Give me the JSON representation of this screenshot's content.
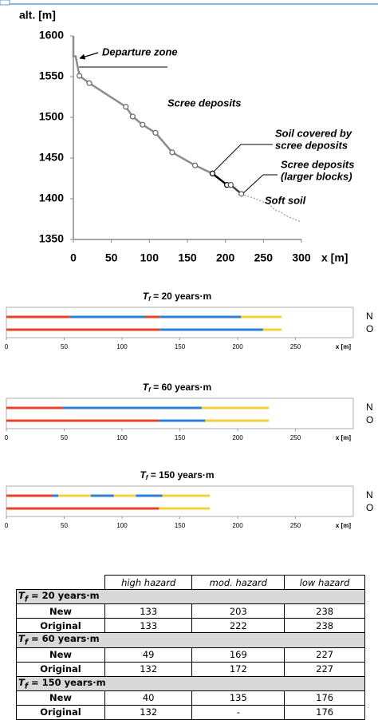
{
  "chart_data": [
    {
      "type": "line",
      "ylabel": "alt. [m]",
      "xlabel": "x [m]",
      "xlim": [
        0,
        300
      ],
      "xticks": [
        0,
        50,
        100,
        150,
        200,
        250,
        300
      ],
      "ylim": [
        1350,
        1600
      ],
      "yticks": [
        1350,
        1400,
        1450,
        1500,
        1550,
        1600
      ],
      "annotations": [
        [
          "Departure zone"
        ],
        [
          "Scree deposits"
        ],
        [
          "Soil covered by",
          "scree deposits"
        ],
        [
          "Scree deposits",
          "(larger blocks)"
        ],
        [
          "Soft soil"
        ]
      ],
      "series": [
        {
          "color": "#8c8c8c",
          "marker": false,
          "dash": false,
          "x": [
            0,
            0,
            3,
            8
          ],
          "values": [
            1600,
            1575,
            1575,
            1551
          ]
        },
        {
          "color": "#8c8c8c",
          "marker": true,
          "dash": false,
          "x": [
            8,
            21,
            69,
            78,
            91,
            108,
            130,
            160,
            183
          ],
          "values": [
            1551,
            1542,
            1513,
            1501,
            1491,
            1481,
            1457,
            1441,
            1431
          ]
        },
        {
          "color": "#000000",
          "marker": true,
          "dash": false,
          "x": [
            183,
            202,
            207
          ],
          "values": [
            1431,
            1417,
            1417
          ]
        },
        {
          "color": "#444444",
          "marker": true,
          "dash": false,
          "x": [
            207,
            221
          ],
          "values": [
            1417,
            1406
          ]
        },
        {
          "color": "#999999",
          "marker": false,
          "dash": true,
          "x": [
            221,
            230,
            240,
            250,
            258,
            265,
            272,
            280,
            288,
            298
          ],
          "values": [
            1406,
            1403,
            1400,
            1396,
            1393,
            1386,
            1384,
            1379,
            1376,
            1372
          ]
        }
      ]
    },
    {
      "type": "zones",
      "title_symbol": "T",
      "title_subscript": "f",
      "title": " = 20 years·m",
      "xlabel": "x [m]",
      "xlim": [
        0,
        300
      ],
      "xticks": [
        0,
        50,
        100,
        150,
        200,
        250
      ],
      "rows": [
        {
          "label": "N",
          "segments": [
            {
              "from": 0,
              "to": 55,
              "color": "#e8432a"
            },
            {
              "from": 55,
              "to": 120,
              "color": "#2f7fd6"
            },
            {
              "from": 120,
              "to": 133,
              "color": "#e8432a"
            },
            {
              "from": 133,
              "to": 203,
              "color": "#2f7fd6"
            },
            {
              "from": 203,
              "to": 238,
              "color": "#f2d23a"
            }
          ]
        },
        {
          "label": "O",
          "segments": [
            {
              "from": 0,
              "to": 133,
              "color": "#e8432a"
            },
            {
              "from": 133,
              "to": 222,
              "color": "#2f7fd6"
            },
            {
              "from": 222,
              "to": 238,
              "color": "#f2d23a"
            }
          ]
        }
      ]
    },
    {
      "type": "zones",
      "title_symbol": "T",
      "title_subscript": "f",
      "title": " = 60 years·m",
      "xlabel": "x [m]",
      "xlim": [
        0,
        300
      ],
      "xticks": [
        0,
        50,
        100,
        150,
        200,
        250
      ],
      "rows": [
        {
          "label": "N",
          "segments": [
            {
              "from": 0,
              "to": 49,
              "color": "#e8432a"
            },
            {
              "from": 49,
              "to": 169,
              "color": "#2f7fd6"
            },
            {
              "from": 169,
              "to": 227,
              "color": "#f2d23a"
            }
          ]
        },
        {
          "label": "O",
          "segments": [
            {
              "from": 0,
              "to": 132,
              "color": "#e8432a"
            },
            {
              "from": 132,
              "to": 172,
              "color": "#2f7fd6"
            },
            {
              "from": 172,
              "to": 227,
              "color": "#f2d23a"
            }
          ]
        }
      ]
    },
    {
      "type": "zones",
      "title_symbol": "T",
      "title_subscript": "f",
      "title": " = 150 years·m",
      "xlabel": "x [m]",
      "xlim": [
        0,
        300
      ],
      "xticks": [
        0,
        50,
        100,
        150,
        200,
        250
      ],
      "rows": [
        {
          "label": "N",
          "segments": [
            {
              "from": 0,
              "to": 40,
              "color": "#e8432a"
            },
            {
              "from": 40,
              "to": 45,
              "color": "#2f7fd6"
            },
            {
              "from": 45,
              "to": 73,
              "color": "#f2d23a"
            },
            {
              "from": 73,
              "to": 93,
              "color": "#2f7fd6"
            },
            {
              "from": 93,
              "to": 112,
              "color": "#f2d23a"
            },
            {
              "from": 112,
              "to": 135,
              "color": "#2f7fd6"
            },
            {
              "from": 135,
              "to": 176,
              "color": "#f2d23a"
            }
          ]
        },
        {
          "label": "O",
          "segments": [
            {
              "from": 0,
              "to": 132,
              "color": "#e8432a"
            },
            {
              "from": 132,
              "to": 176,
              "color": "#f2d23a"
            }
          ]
        }
      ]
    }
  ],
  "table": {
    "header": [
      "high hazard",
      "mod. hazard",
      "low hazard"
    ],
    "groups": [
      {
        "title_symbol": "T",
        "title_subscript": "f",
        "title": " = 20 years·m",
        "rows": [
          [
            "New",
            133,
            203,
            238
          ],
          [
            "Original",
            133,
            222,
            238
          ]
        ]
      },
      {
        "title_symbol": "T",
        "title_subscript": "f",
        "title": " = 60 years·m",
        "rows": [
          [
            "New",
            49,
            169,
            227
          ],
          [
            "Original",
            132,
            172,
            227
          ]
        ]
      },
      {
        "title_symbol": "T",
        "title_subscript": "f",
        "title": " = 150 years·m",
        "rows": [
          [
            "New",
            40,
            135,
            176
          ],
          [
            "Original",
            132,
            "-",
            176
          ]
        ]
      }
    ]
  }
}
